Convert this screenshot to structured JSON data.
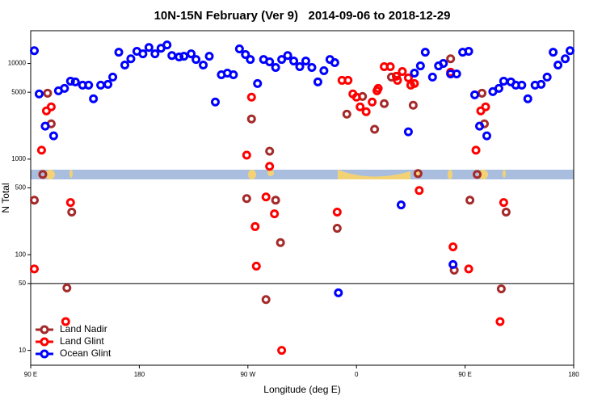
{
  "chart_data": {
    "type": "scatter",
    "title": "10N-15N February (Ver 9)   2014-09-06 to 2018-12-29",
    "x_label": "Longitude (deg E)",
    "y_label": "N Total",
    "log_y": true,
    "xlim": [
      90,
      540
    ],
    "ylim": [
      7,
      22000
    ],
    "xticks": [
      {
        "value": 90,
        "label": "90 E"
      },
      {
        "value": 180,
        "label": "180"
      },
      {
        "value": 270,
        "label": "90 W"
      },
      {
        "value": 360,
        "label": "0"
      },
      {
        "value": 450,
        "label": "90 E"
      },
      {
        "value": 540,
        "label": "180"
      }
    ],
    "yticks": [
      10,
      50,
      100,
      500,
      1000,
      5000,
      10000
    ],
    "hline": 50,
    "legend": "bottom-left",
    "series": [
      {
        "name": "Land Nadir",
        "color": "#a52a2a",
        "x": [
          93,
          100,
          104,
          107,
          120,
          124,
          269,
          273,
          288,
          293,
          297,
          285,
          344,
          352,
          365,
          375,
          383,
          389,
          407,
          411,
          438,
          441,
          454,
          460,
          464,
          466,
          480,
          484
        ],
        "values": [
          372,
          692,
          4890,
          2340,
          45,
          279,
          387,
          2630,
          1210,
          372,
          134,
          34,
          189,
          2950,
          4520,
          2050,
          3800,
          7200,
          3660,
          706,
          11200,
          69,
          372,
          692,
          4890,
          2340,
          44,
          279
        ]
      },
      {
        "name": "Land Glint",
        "color": "#ff0000",
        "x": [
          93,
          99,
          103,
          107,
          119,
          123,
          269,
          273,
          276,
          277,
          285,
          288,
          292,
          298,
          344,
          348,
          353,
          357,
          360,
          363,
          368,
          373,
          377,
          378,
          383,
          388,
          393,
          394,
          398,
          403,
          405,
          408,
          412,
          438,
          440,
          453,
          459,
          463,
          467,
          479,
          482
        ],
        "values": [
          71,
          1240,
          3190,
          3520,
          20,
          352,
          1100,
          4440,
          197,
          76,
          402,
          840,
          268,
          10,
          279,
          6660,
          6660,
          4800,
          4440,
          3520,
          3130,
          3950,
          5180,
          5490,
          9250,
          9250,
          7350,
          6660,
          8240,
          7070,
          5930,
          6170,
          470,
          8090,
          121,
          71,
          1240,
          3190,
          3520,
          20,
          352
        ]
      },
      {
        "name": "Ocean Glint",
        "color": "#0000ff",
        "x": [
          93,
          97,
          102,
          109,
          113,
          118,
          123,
          127,
          133,
          138,
          142,
          148,
          154,
          158,
          163,
          168,
          173,
          178,
          183,
          188,
          193,
          198,
          203,
          207,
          213,
          217,
          223,
          227,
          233,
          238,
          243,
          248,
          253,
          258,
          263,
          268,
          272,
          278,
          283,
          288,
          293,
          298,
          303,
          308,
          313,
          318,
          323,
          328,
          333,
          338,
          342,
          345,
          397,
          403,
          408,
          413,
          417,
          423,
          428,
          432,
          438,
          443,
          448,
          453,
          458,
          462,
          468,
          473,
          478,
          482,
          488,
          492,
          497,
          502,
          508,
          513,
          518,
          523,
          527,
          533,
          537,
          440
        ],
        "values": [
          13600,
          4800,
          2210,
          1750,
          5180,
          5490,
          6530,
          6410,
          5930,
          5930,
          4270,
          5930,
          6050,
          7200,
          13100,
          9620,
          11200,
          13400,
          12600,
          14700,
          12600,
          14400,
          15600,
          12100,
          11700,
          11900,
          12600,
          11000,
          9620,
          11900,
          3950,
          7620,
          7920,
          7620,
          14200,
          12400,
          11000,
          6170,
          11000,
          10400,
          9080,
          11000,
          12100,
          10600,
          9250,
          10600,
          9080,
          6410,
          8400,
          11000,
          10200,
          40,
          332,
          1930,
          7920,
          9430,
          13100,
          7200,
          9430,
          10000,
          7780,
          7780,
          13100,
          13400,
          4700,
          2210,
          1750,
          5080,
          5490,
          6530,
          6410,
          5930,
          5930,
          4270,
          5930,
          6050,
          7200,
          13100,
          9620,
          11200,
          13600,
          79
        ]
      }
    ]
  }
}
